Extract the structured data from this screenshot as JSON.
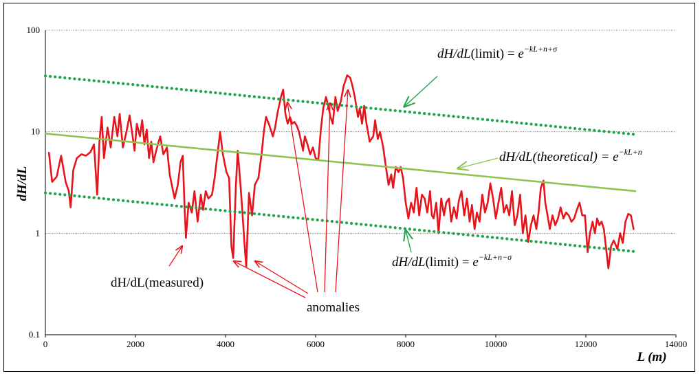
{
  "chart_data": {
    "type": "line",
    "title": "",
    "xlabel": "L (m)",
    "ylabel": "dH/dL",
    "x_ticks": [
      "0",
      "2000",
      "4000",
      "6000",
      "8000",
      "10000",
      "12000",
      "14000"
    ],
    "y_ticks": [
      "0.1",
      "1",
      "10",
      "100"
    ],
    "xlim": [
      0,
      14000
    ],
    "ylim": [
      0.1,
      100
    ],
    "y_scale": "log",
    "grid": "horizontal dotted",
    "series": [
      {
        "name": "dH/dL(measured)",
        "color": "#e8141c",
        "style": "solid",
        "points": [
          [
            80,
            6.2
          ],
          [
            150,
            3.2
          ],
          [
            250,
            3.6
          ],
          [
            350,
            5.8
          ],
          [
            450,
            3.2
          ],
          [
            520,
            2.6
          ],
          [
            560,
            1.8
          ],
          [
            620,
            4.2
          ],
          [
            700,
            5.5
          ],
          [
            800,
            6.0
          ],
          [
            900,
            5.8
          ],
          [
            1000,
            6.3
          ],
          [
            1080,
            7.5
          ],
          [
            1150,
            2.4
          ],
          [
            1200,
            8.0
          ],
          [
            1250,
            14.0
          ],
          [
            1300,
            5.5
          ],
          [
            1380,
            11.0
          ],
          [
            1450,
            7.0
          ],
          [
            1530,
            14.0
          ],
          [
            1600,
            9.0
          ],
          [
            1650,
            15.0
          ],
          [
            1720,
            7.0
          ],
          [
            1800,
            10.0
          ],
          [
            1870,
            14.5
          ],
          [
            1930,
            9.5
          ],
          [
            1980,
            6.5
          ],
          [
            2030,
            12.0
          ],
          [
            2100,
            9.0
          ],
          [
            2150,
            13.0
          ],
          [
            2200,
            7.5
          ],
          [
            2250,
            10.5
          ],
          [
            2300,
            5.5
          ],
          [
            2350,
            8.0
          ],
          [
            2400,
            5.0
          ],
          [
            2460,
            6.5
          ],
          [
            2550,
            9.0
          ],
          [
            2620,
            6.0
          ],
          [
            2700,
            7.0
          ],
          [
            2760,
            3.8
          ],
          [
            2820,
            2.8
          ],
          [
            2870,
            2.2
          ],
          [
            2940,
            3.0
          ],
          [
            3000,
            5.0
          ],
          [
            3050,
            5.8
          ],
          [
            3090,
            1.8
          ],
          [
            3120,
            0.9
          ],
          [
            3180,
            2.0
          ],
          [
            3250,
            1.6
          ],
          [
            3310,
            2.6
          ],
          [
            3380,
            1.3
          ],
          [
            3450,
            2.4
          ],
          [
            3500,
            1.7
          ],
          [
            3560,
            2.6
          ],
          [
            3620,
            2.2
          ],
          [
            3700,
            2.4
          ],
          [
            3760,
            3.6
          ],
          [
            3830,
            6.5
          ],
          [
            3880,
            10.0
          ],
          [
            3940,
            6.0
          ],
          [
            4020,
            4.0
          ],
          [
            4080,
            3.5
          ],
          [
            4130,
            0.75
          ],
          [
            4170,
            0.57
          ],
          [
            4230,
            3.0
          ],
          [
            4270,
            6.5
          ],
          [
            4310,
            4.0
          ],
          [
            4360,
            2.0
          ],
          [
            4420,
            0.8
          ],
          [
            4460,
            0.47
          ],
          [
            4520,
            2.5
          ],
          [
            4590,
            1.5
          ],
          [
            4650,
            3.0
          ],
          [
            4730,
            3.5
          ],
          [
            4800,
            6.0
          ],
          [
            4850,
            10.0
          ],
          [
            4900,
            14.0
          ],
          [
            4960,
            12.0
          ],
          [
            5050,
            9.0
          ],
          [
            5100,
            11.0
          ],
          [
            5150,
            15.0
          ],
          [
            5230,
            22.0
          ],
          [
            5280,
            26.0
          ],
          [
            5330,
            15.0
          ],
          [
            5380,
            12.0
          ],
          [
            5430,
            14.0
          ],
          [
            5480,
            12.0
          ],
          [
            5530,
            12.5
          ],
          [
            5580,
            11.5
          ],
          [
            5630,
            10.0
          ],
          [
            5680,
            8.0
          ],
          [
            5720,
            6.5
          ],
          [
            5760,
            9.0
          ],
          [
            5820,
            7.5
          ],
          [
            5880,
            6.0
          ],
          [
            5940,
            7.0
          ],
          [
            6000,
            5.5
          ],
          [
            6060,
            5.3
          ],
          [
            6120,
            11.0
          ],
          [
            6170,
            17.0
          ],
          [
            6230,
            22.0
          ],
          [
            6280,
            18.0
          ],
          [
            6330,
            14.0
          ],
          [
            6380,
            12.0
          ],
          [
            6440,
            22.0
          ],
          [
            6490,
            16.0
          ],
          [
            6560,
            20.0
          ],
          [
            6620,
            28.0
          ],
          [
            6700,
            36.0
          ],
          [
            6770,
            34.0
          ],
          [
            6820,
            28.0
          ],
          [
            6870,
            22.0
          ],
          [
            6940,
            14.0
          ],
          [
            6980,
            17.0
          ],
          [
            7030,
            12.0
          ],
          [
            7080,
            18.0
          ],
          [
            7130,
            12.0
          ],
          [
            7200,
            8.0
          ],
          [
            7280,
            9.0
          ],
          [
            7320,
            13.0
          ],
          [
            7380,
            8.5
          ],
          [
            7430,
            10.0
          ],
          [
            7500,
            7.0
          ],
          [
            7560,
            4.5
          ],
          [
            7620,
            3.0
          ],
          [
            7680,
            3.8
          ],
          [
            7720,
            2.8
          ],
          [
            7780,
            4.5
          ],
          [
            7840,
            4.0
          ],
          [
            7890,
            4.5
          ],
          [
            7940,
            3.5
          ],
          [
            8000,
            2.0
          ],
          [
            8060,
            1.4
          ],
          [
            8120,
            2.0
          ],
          [
            8180,
            1.6
          ],
          [
            8240,
            2.8
          ],
          [
            8300,
            1.5
          ],
          [
            8360,
            2.4
          ],
          [
            8420,
            2.2
          ],
          [
            8480,
            1.6
          ],
          [
            8540,
            2.6
          ],
          [
            8580,
            1.5
          ],
          [
            8620,
            1.4
          ],
          [
            8680,
            2.0
          ],
          [
            8730,
            1.0
          ],
          [
            8790,
            2.2
          ],
          [
            8850,
            1.5
          ],
          [
            8900,
            2.0
          ],
          [
            8960,
            2.2
          ],
          [
            9010,
            1.3
          ],
          [
            9070,
            1.8
          ],
          [
            9130,
            1.4
          ],
          [
            9180,
            2.1
          ],
          [
            9240,
            2.6
          ],
          [
            9300,
            1.5
          ],
          [
            9360,
            2.2
          ],
          [
            9420,
            1.3
          ],
          [
            9470,
            1.9
          ],
          [
            9530,
            1.1
          ],
          [
            9580,
            1.6
          ],
          [
            9640,
            1.3
          ],
          [
            9700,
            2.4
          ],
          [
            9760,
            1.6
          ],
          [
            9820,
            2.0
          ],
          [
            9880,
            3.1
          ],
          [
            9940,
            2.2
          ],
          [
            10000,
            1.4
          ],
          [
            10060,
            2.0
          ],
          [
            10120,
            2.8
          ],
          [
            10180,
            1.6
          ],
          [
            10240,
            1.9
          ],
          [
            10300,
            1.5
          ],
          [
            10360,
            2.6
          ],
          [
            10420,
            1.2
          ],
          [
            10480,
            1.5
          ],
          [
            10540,
            2.4
          ],
          [
            10600,
            1.0
          ],
          [
            10660,
            1.5
          ],
          [
            10720,
            0.82
          ],
          [
            10780,
            1.2
          ],
          [
            10840,
            1.5
          ],
          [
            10900,
            1.1
          ],
          [
            10950,
            1.6
          ],
          [
            11000,
            2.8
          ],
          [
            11060,
            3.3
          ],
          [
            11100,
            2.0
          ],
          [
            11150,
            1.5
          ],
          [
            11200,
            1.1
          ],
          [
            11260,
            1.5
          ],
          [
            11320,
            1.2
          ],
          [
            11380,
            1.4
          ],
          [
            11440,
            1.8
          ],
          [
            11500,
            1.4
          ],
          [
            11560,
            1.6
          ],
          [
            11620,
            1.5
          ],
          [
            11680,
            1.3
          ],
          [
            11740,
            1.4
          ],
          [
            11800,
            1.7
          ],
          [
            11860,
            2.0
          ],
          [
            11920,
            1.5
          ],
          [
            11980,
            1.5
          ],
          [
            12040,
            0.65
          ],
          [
            12090,
            1.0
          ],
          [
            12150,
            1.3
          ],
          [
            12200,
            1.0
          ],
          [
            12250,
            1.4
          ],
          [
            12300,
            1.2
          ],
          [
            12350,
            1.3
          ],
          [
            12400,
            1.1
          ],
          [
            12450,
            0.7
          ],
          [
            12500,
            0.45
          ],
          [
            12560,
            0.75
          ],
          [
            12620,
            0.85
          ],
          [
            12700,
            0.7
          ],
          [
            12760,
            1.0
          ],
          [
            12820,
            0.8
          ],
          [
            12880,
            1.3
          ],
          [
            12940,
            1.55
          ],
          [
            13000,
            1.5
          ],
          [
            13060,
            1.1
          ]
        ]
      },
      {
        "name": "dH/dL(theoretical)",
        "color": "#8ec44f",
        "style": "solid",
        "points": [
          [
            0,
            9.6
          ],
          [
            13100,
            2.6
          ]
        ]
      },
      {
        "name": "dH/dL(limit) upper",
        "color": "#1fa44a",
        "style": "dotted",
        "points": [
          [
            0,
            35.5
          ],
          [
            13100,
            9.4
          ]
        ]
      },
      {
        "name": "dH/dL(limit) lower",
        "color": "#1fa44a",
        "style": "dotted",
        "points": [
          [
            0,
            2.5
          ],
          [
            13100,
            0.66
          ]
        ]
      }
    ],
    "annotations": {
      "upper_limit": {
        "lhs": "dH/dL",
        "mid": "(limit) = ",
        "base": "e",
        "exponent": "−kL+n+σ"
      },
      "theoretical": {
        "lhs": "dH/dL",
        "mid": "(theoretical) = ",
        "base": "e",
        "exponent": "−kL+n"
      },
      "lower_limit": {
        "lhs": "dH/dL",
        "mid": "(limit) = ",
        "base": "e",
        "exponent": "−kL+n−σ"
      },
      "measured": "dH/dL(measured)",
      "anomalies": "anomalies"
    },
    "legend": "none"
  }
}
